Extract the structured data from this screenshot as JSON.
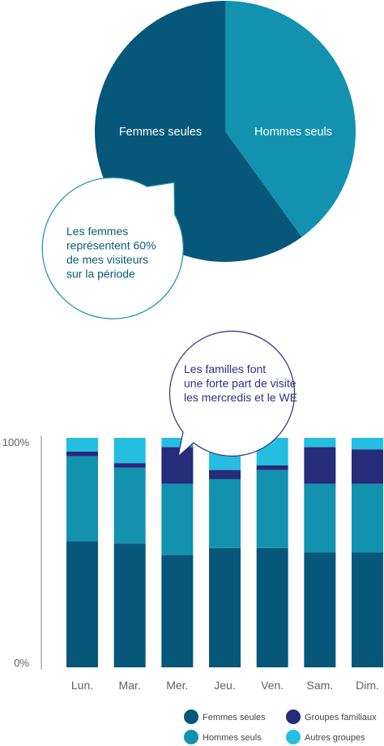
{
  "colors": {
    "femmes_seules": "#06577a",
    "hommes_seuls": "#1292ae",
    "groupes_familiaux": "#262b7a",
    "autres_groupes": "#25bde0",
    "pie_label_text": "#ffffff",
    "bubble1_border": "#1a8fa3",
    "bubble1_text": "#0b5c7a",
    "bubble2_border": "#2d2f82",
    "bubble2_text": "#2d2f82",
    "axis_text": "#5d6166"
  },
  "chart_data": [
    {
      "type": "pie",
      "series": [
        {
          "label": "Femmes seules",
          "value": 60,
          "color_key": "femmes_seules"
        },
        {
          "label": "Hommes seuls",
          "value": 40,
          "color_key": "hommes_seuls"
        }
      ],
      "annotation": "Les femmes représentent 60% de mes visiteurs sur la période"
    },
    {
      "type": "bar",
      "stacked": "percent",
      "categories": [
        "Lun.",
        "Mar.",
        "Mer.",
        "Jeu.",
        "Ven.",
        "Sam.",
        "Dim."
      ],
      "series": [
        {
          "name": "Femmes seules",
          "color_key": "femmes_seules",
          "values": [
            55,
            54,
            49,
            52,
            52,
            50,
            50
          ]
        },
        {
          "name": "Hommes seuls",
          "color_key": "hommes_seuls",
          "values": [
            37,
            33,
            31,
            30,
            34,
            30,
            30
          ]
        },
        {
          "name": "Groupes familiaux",
          "color_key": "groupes_familiaux",
          "values": [
            2,
            2,
            16,
            4,
            2,
            16,
            15
          ]
        },
        {
          "name": "Autres groupes",
          "color_key": "autres_groupes",
          "values": [
            6,
            11,
            4,
            14,
            12,
            4,
            5
          ]
        }
      ],
      "ylim": [
        0,
        100
      ],
      "y_tick_labels": [
        "100%",
        "0%"
      ],
      "legend_position": "bottom",
      "annotation": "Les familles font une forte part de visite les mercredis et le WE"
    }
  ]
}
